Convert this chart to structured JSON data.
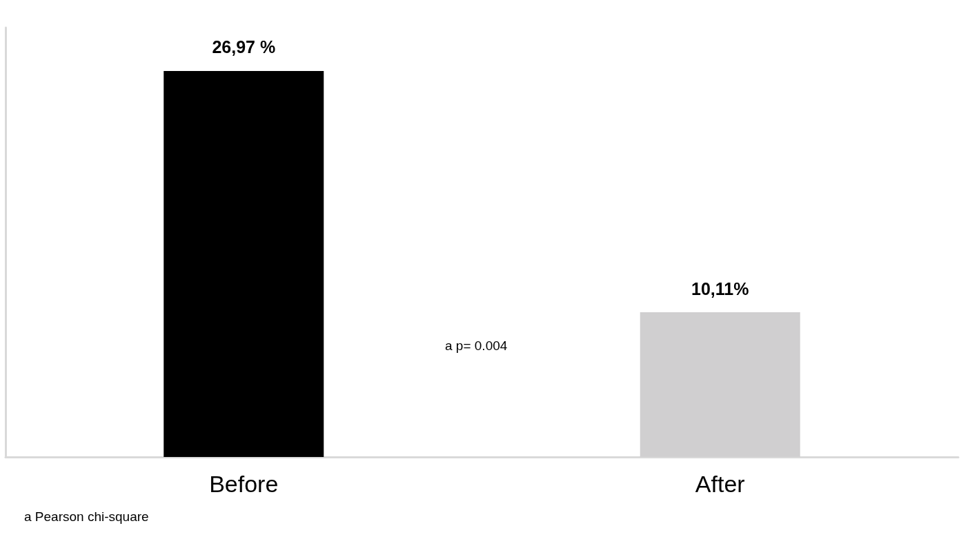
{
  "chart_data": {
    "type": "bar",
    "categories": [
      "Before",
      "After"
    ],
    "values": [
      26.97,
      10.11
    ],
    "colors": [
      "#000000",
      "#d0cfd0"
    ],
    "value_labels": [
      "26,97 %",
      "10,11%"
    ],
    "tick_labels": "x",
    "grid": false,
    "annotations": [
      "a p= 0.004",
      "a Pearson chi-square"
    ]
  }
}
